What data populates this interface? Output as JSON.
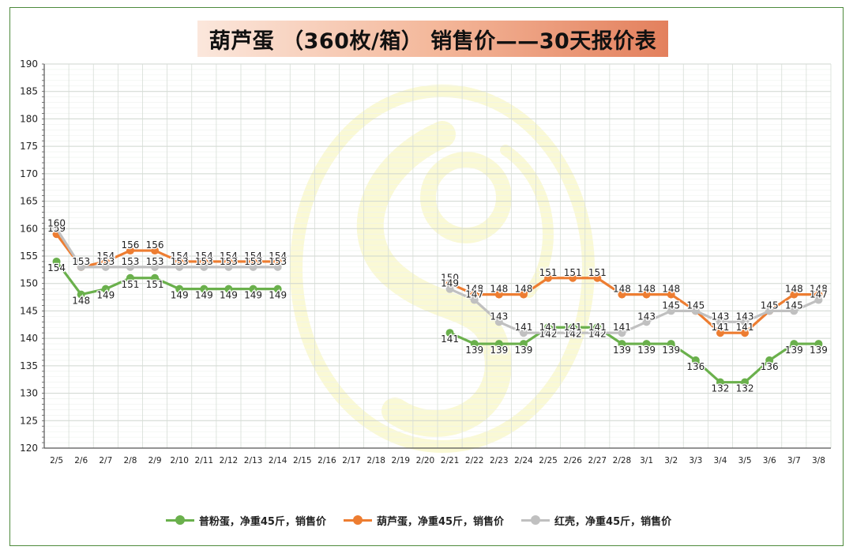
{
  "title": "葫芦蛋 （360枚/箱） 销售价——30天报价表",
  "chart_data": {
    "type": "line",
    "title": "葫芦蛋 （360枚/箱） 销售价——30天报价表",
    "xlabel": "",
    "ylabel": "",
    "ylim": [
      120,
      190
    ],
    "yticks": [
      120,
      125,
      130,
      135,
      140,
      145,
      150,
      155,
      160,
      165,
      170,
      175,
      180,
      185,
      190
    ],
    "grid": true,
    "legend_position": "bottom",
    "categories": [
      "2/5",
      "2/6",
      "2/7",
      "2/8",
      "2/9",
      "2/10",
      "2/11",
      "2/12",
      "2/13",
      "2/14",
      "2/15",
      "2/16",
      "2/17",
      "2/18",
      "2/19",
      "2/20",
      "2/21",
      "2/22",
      "2/23",
      "2/24",
      "2/25",
      "2/26",
      "2/27",
      "2/28",
      "3/1",
      "3/2",
      "3/3",
      "3/4",
      "3/5",
      "3/6",
      "3/7",
      "3/8"
    ],
    "series": [
      {
        "name": "普粉蛋，净重45斤，销售价",
        "color": "#6ab04c",
        "values": [
          154,
          148,
          149,
          151,
          151,
          149,
          149,
          149,
          149,
          149,
          null,
          null,
          null,
          null,
          null,
          null,
          141,
          139,
          139,
          139,
          142,
          142,
          142,
          139,
          139,
          139,
          136,
          132,
          132,
          136,
          139,
          139
        ]
      },
      {
        "name": "葫芦蛋，净重45斤，销售价",
        "color": "#ed7d31",
        "values": [
          159,
          153,
          154,
          156,
          156,
          154,
          154,
          154,
          154,
          154,
          null,
          null,
          null,
          null,
          null,
          null,
          150,
          148,
          148,
          148,
          151,
          151,
          151,
          148,
          148,
          148,
          145,
          141,
          141,
          145,
          148,
          148
        ]
      },
      {
        "name": "红壳，净重45斤，销售价",
        "color": "#c0c0c0",
        "values": [
          160,
          153,
          153,
          153,
          153,
          153,
          153,
          153,
          153,
          153,
          null,
          null,
          null,
          null,
          null,
          null,
          149,
          147,
          143,
          141,
          141,
          141,
          141,
          141,
          143,
          145,
          145,
          143,
          143,
          145,
          145,
          147
        ]
      }
    ]
  }
}
